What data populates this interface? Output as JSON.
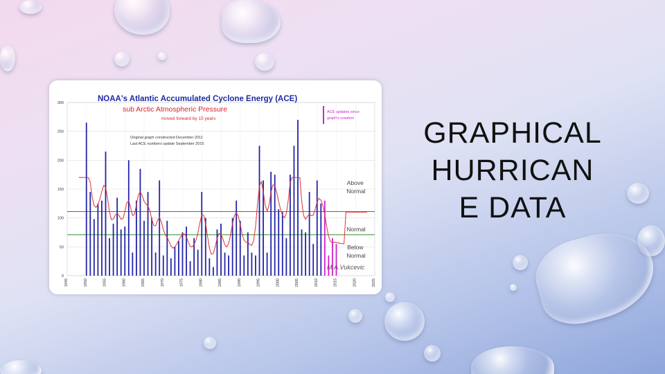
{
  "slide": {
    "title": "GRAPHICAL HURRICANE DATA",
    "title_lines": [
      "GRAPHICAL",
      "HURRICAN",
      "E DATA"
    ]
  },
  "chart_data": {
    "type": "bar",
    "title": "NOAA's Atlantic Accumulated Cyclone Energy (ACE)",
    "subtitle": "sub Arctic Atmospheric Pressure",
    "subtitle2": "moved forward by 15 years",
    "note_lines": [
      "Original graph constructed December 2011",
      "Last ACE numbers update September 2015"
    ],
    "legend_note_lines": [
      "ACE updates since",
      "graph's creation"
    ],
    "signature": "M.A.Vukcevic",
    "zone_labels": {
      "above": [
        "Above",
        "Normal"
      ],
      "normal": [
        "Normal"
      ],
      "below": [
        "Below",
        "Normal"
      ]
    },
    "ylim": [
      0,
      300
    ],
    "xlim": [
      1945,
      2025
    ],
    "y_ticks": [
      0,
      50,
      100,
      150,
      200,
      250,
      300
    ],
    "x_ticks": [
      1945,
      1950,
      1955,
      1960,
      1965,
      1970,
      1975,
      1980,
      1985,
      1990,
      1995,
      2000,
      2005,
      2010,
      2015,
      2020,
      2025
    ],
    "normal_band": [
      71,
      111
    ],
    "series": [
      {
        "name": "ACE",
        "x": [
          1950,
          1951,
          1952,
          1953,
          1954,
          1955,
          1956,
          1957,
          1958,
          1959,
          1960,
          1961,
          1962,
          1963,
          1964,
          1965,
          1966,
          1967,
          1968,
          1969,
          1970,
          1971,
          1972,
          1973,
          1974,
          1975,
          1976,
          1977,
          1978,
          1979,
          1980,
          1981,
          1982,
          1983,
          1984,
          1985,
          1986,
          1987,
          1988,
          1989,
          1990,
          1991,
          1992,
          1993,
          1994,
          1995,
          1996,
          1997,
          1998,
          1999,
          2000,
          2001,
          2002,
          2003,
          2004,
          2005,
          2006,
          2007,
          2008,
          2009,
          2010,
          2011
        ],
        "values": [
          265,
          145,
          98,
          125,
          130,
          215,
          65,
          90,
          135,
          80,
          85,
          200,
          40,
          130,
          185,
          95,
          145,
          100,
          40,
          165,
          35,
          95,
          30,
          50,
          60,
          75,
          85,
          25,
          65,
          45,
          145,
          100,
          30,
          15,
          80,
          90,
          40,
          35,
          100,
          130,
          95,
          35,
          75,
          40,
          35,
          225,
          165,
          40,
          180,
          175,
          115,
          110,
          65,
          175,
          225,
          270,
          80,
          75,
          145,
          55,
          165,
          125
        ]
      },
      {
        "name": "ACE updates since graph's creation",
        "x": [
          2012,
          2013,
          2014,
          2015
        ],
        "values": [
          130,
          35,
          65,
          55
        ]
      }
    ]
  }
}
